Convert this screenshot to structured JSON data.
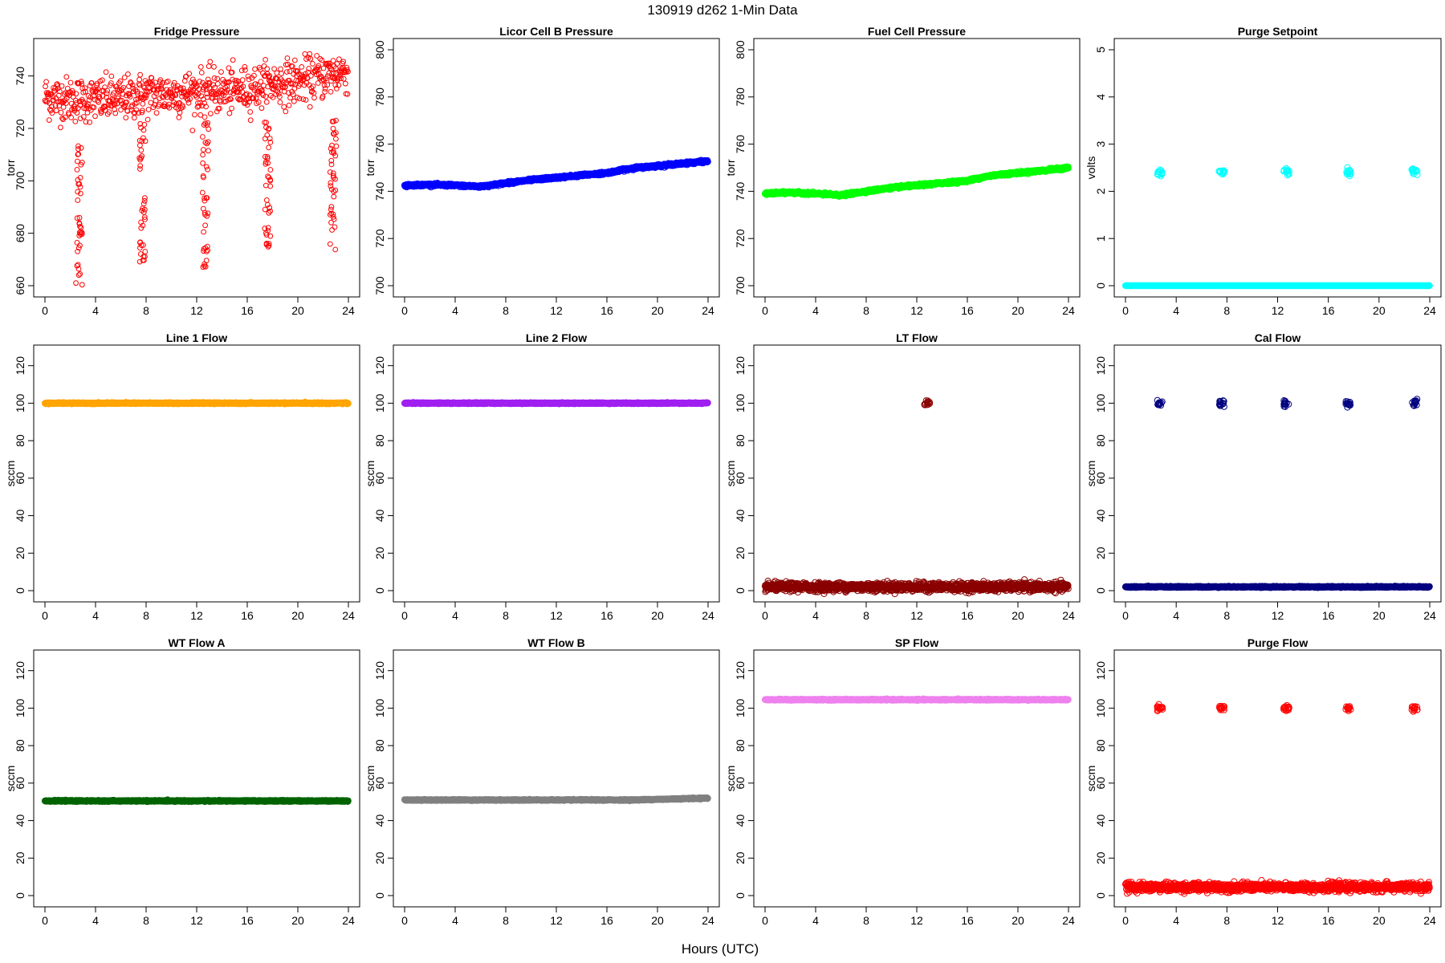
{
  "figure": {
    "suptitle": "130919    d262    1-Min Data",
    "xlabel": "Hours (UTC)"
  },
  "chart_data": [
    {
      "type": "scatter",
      "title": "Fridge Pressure",
      "ylabel": "torr",
      "color": "#ff0000",
      "marker": "open-circle",
      "xlim": [
        0,
        24
      ],
      "ylim": [
        660,
        750
      ],
      "xticks": [
        0,
        4,
        8,
        12,
        16,
        20,
        24
      ],
      "yticks": [
        660,
        680,
        700,
        720,
        740
      ],
      "series": [
        {
          "x": [
            0,
            2,
            4,
            6,
            8,
            10,
            12,
            14,
            16,
            18,
            20,
            22,
            24
          ],
          "y": [
            732,
            731,
            731,
            731,
            733,
            733,
            734,
            734,
            735,
            737,
            738,
            740,
            742
          ]
        }
      ],
      "dips": [
        {
          "x": 2.7,
          "y_min": 660,
          "y_max": 718
        },
        {
          "x": 7.7,
          "y_min": 669,
          "y_max": 722
        },
        {
          "x": 12.7,
          "y_min": 667,
          "y_max": 724
        },
        {
          "x": 17.6,
          "y_min": 674,
          "y_max": 723
        },
        {
          "x": 22.8,
          "y_min": 671,
          "y_max": 726
        }
      ]
    },
    {
      "type": "scatter",
      "title": "Licor Cell B Pressure",
      "ylabel": "torr",
      "color": "#0000ff",
      "marker": "open-circle",
      "xlim": [
        0,
        24
      ],
      "ylim": [
        700,
        800
      ],
      "xticks": [
        0,
        4,
        8,
        12,
        16,
        20,
        24
      ],
      "yticks": [
        700,
        720,
        740,
        760,
        780,
        800
      ],
      "series": [
        {
          "x": [
            0,
            2,
            4,
            6,
            8,
            10,
            12,
            14,
            16,
            18,
            20,
            22,
            24
          ],
          "y": [
            742.5,
            742.8,
            742.5,
            742.0,
            743.5,
            744.8,
            745.8,
            746.8,
            747.8,
            749.8,
            750.8,
            751.8,
            752.8
          ]
        }
      ]
    },
    {
      "type": "scatter",
      "title": "Fuel Cell Pressure",
      "ylabel": "torr",
      "color": "#00ff00",
      "marker": "open-circle",
      "xlim": [
        0,
        24
      ],
      "ylim": [
        700,
        800
      ],
      "xticks": [
        0,
        4,
        8,
        12,
        16,
        20,
        24
      ],
      "yticks": [
        700,
        720,
        740,
        760,
        780,
        800
      ],
      "series": [
        {
          "x": [
            0,
            2,
            4,
            6,
            8,
            10,
            12,
            14,
            16,
            18,
            20,
            22,
            24
          ],
          "y": [
            739,
            739.5,
            739,
            738.3,
            740,
            741.5,
            742.5,
            743.5,
            744.5,
            746.8,
            747.8,
            748.8,
            750
          ]
        }
      ]
    },
    {
      "type": "scatter",
      "title": "Purge Setpoint",
      "ylabel": "volts",
      "color": "#00ffff",
      "marker": "open-circle",
      "xlim": [
        0,
        24
      ],
      "ylim": [
        0,
        5
      ],
      "xticks": [
        0,
        4,
        8,
        12,
        16,
        20,
        24
      ],
      "yticks": [
        0,
        1,
        2,
        3,
        4,
        5
      ],
      "series": [
        {
          "x": [
            0,
            24
          ],
          "y": [
            0,
            0
          ]
        }
      ],
      "events": {
        "xs": [
          2.7,
          7.6,
          12.7,
          17.6,
          22.8
        ],
        "y": 2.42
      }
    },
    {
      "type": "scatter",
      "title": "Line 1 Flow",
      "ylabel": "sccm",
      "color": "#ffa500",
      "marker": "open-circle",
      "xlim": [
        0,
        24
      ],
      "ylim": [
        0,
        125
      ],
      "xticks": [
        0,
        4,
        8,
        12,
        16,
        20,
        24
      ],
      "yticks": [
        0,
        20,
        40,
        60,
        80,
        100,
        120
      ],
      "series": [
        {
          "x": [
            0,
            24
          ],
          "y": [
            100,
            100
          ]
        }
      ]
    },
    {
      "type": "scatter",
      "title": "Line 2 Flow",
      "ylabel": "sccm",
      "color": "#a020f0",
      "marker": "open-circle",
      "xlim": [
        0,
        24
      ],
      "ylim": [
        0,
        125
      ],
      "xticks": [
        0,
        4,
        8,
        12,
        16,
        20,
        24
      ],
      "yticks": [
        0,
        20,
        40,
        60,
        80,
        100,
        120
      ],
      "series": [
        {
          "x": [
            0,
            24
          ],
          "y": [
            100,
            100
          ]
        }
      ]
    },
    {
      "type": "scatter",
      "title": "LT Flow",
      "ylabel": "sccm",
      "color": "#8b0000",
      "marker": "open-circle",
      "xlim": [
        0,
        24
      ],
      "ylim": [
        0,
        125
      ],
      "xticks": [
        0,
        4,
        8,
        12,
        16,
        20,
        24
      ],
      "yticks": [
        0,
        20,
        40,
        60,
        80,
        100,
        120
      ],
      "series": [
        {
          "x": [
            0,
            24
          ],
          "y": [
            2,
            2
          ]
        }
      ],
      "events": {
        "xs": [
          12.8
        ],
        "y": 100
      }
    },
    {
      "type": "scatter",
      "title": "Cal Flow",
      "ylabel": "sccm",
      "color": "#000080",
      "marker": "open-circle",
      "xlim": [
        0,
        24
      ],
      "ylim": [
        0,
        125
      ],
      "xticks": [
        0,
        4,
        8,
        12,
        16,
        20,
        24
      ],
      "yticks": [
        0,
        20,
        40,
        60,
        80,
        100,
        120
      ],
      "series": [
        {
          "x": [
            0,
            24
          ],
          "y": [
            2,
            2
          ]
        }
      ],
      "events": {
        "xs": [
          2.7,
          7.6,
          12.7,
          17.6,
          22.8
        ],
        "y": 100
      }
    },
    {
      "type": "scatter",
      "title": "WT Flow A",
      "ylabel": "sccm",
      "color": "#006400",
      "marker": "open-circle",
      "xlim": [
        0,
        24
      ],
      "ylim": [
        0,
        125
      ],
      "xticks": [
        0,
        4,
        8,
        12,
        16,
        20,
        24
      ],
      "yticks": [
        0,
        20,
        40,
        60,
        80,
        100,
        120
      ],
      "series": [
        {
          "x": [
            0,
            24
          ],
          "y": [
            50.5,
            50.5
          ]
        }
      ]
    },
    {
      "type": "scatter",
      "title": "WT Flow B",
      "ylabel": "sccm",
      "color": "#808080",
      "marker": "open-circle",
      "xlim": [
        0,
        24
      ],
      "ylim": [
        0,
        125
      ],
      "xticks": [
        0,
        4,
        8,
        12,
        16,
        20,
        24
      ],
      "yticks": [
        0,
        20,
        40,
        60,
        80,
        100,
        120
      ],
      "series": [
        {
          "x": [
            0,
            12,
            18,
            24
          ],
          "y": [
            51,
            51,
            51,
            52
          ]
        }
      ]
    },
    {
      "type": "scatter",
      "title": "SP Flow",
      "ylabel": "sccm",
      "color": "#ee82ee",
      "marker": "open-circle",
      "xlim": [
        0,
        24
      ],
      "ylim": [
        0,
        125
      ],
      "xticks": [
        0,
        4,
        8,
        12,
        16,
        20,
        24
      ],
      "yticks": [
        0,
        20,
        40,
        60,
        80,
        100,
        120
      ],
      "series": [
        {
          "x": [
            0,
            24
          ],
          "y": [
            104.5,
            104.5
          ]
        }
      ]
    },
    {
      "type": "scatter",
      "title": "Purge Flow",
      "ylabel": "sccm",
      "color": "#ff0000",
      "marker": "open-circle",
      "xlim": [
        0,
        24
      ],
      "ylim": [
        0,
        125
      ],
      "xticks": [
        0,
        4,
        8,
        12,
        16,
        20,
        24
      ],
      "yticks": [
        0,
        20,
        40,
        60,
        80,
        100,
        120
      ],
      "series": [
        {
          "x": [
            0,
            24
          ],
          "y": [
            4.5,
            4.5
          ]
        }
      ],
      "events": {
        "xs": [
          2.7,
          7.6,
          12.7,
          17.6,
          22.8
        ],
        "y": 100
      }
    }
  ]
}
